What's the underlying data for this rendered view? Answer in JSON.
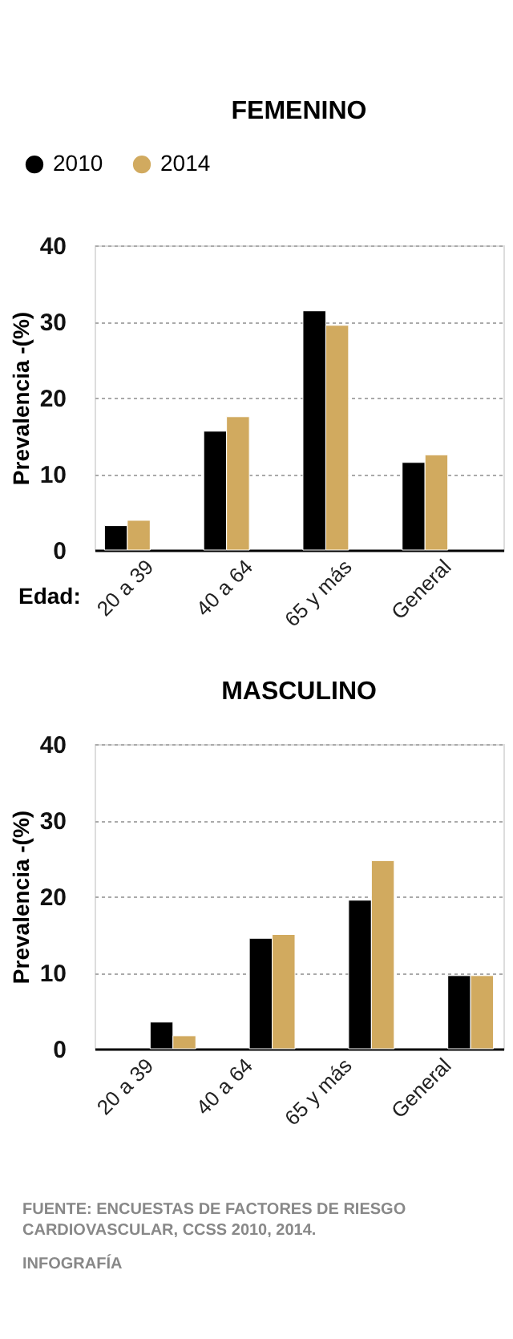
{
  "chart_data": [
    {
      "type": "bar",
      "title": "FEMENINO",
      "ylabel": "Prevalencia -(%)",
      "xlabel": "Edad:",
      "categories": [
        "20 a 39",
        "40 a 64",
        "65 y más",
        "General"
      ],
      "series": [
        {
          "name": "2010",
          "color": "#000000",
          "values": [
            3.2,
            15.6,
            31.4,
            11.5
          ]
        },
        {
          "name": "2014",
          "color": "#d1aa5f",
          "values": [
            3.9,
            17.5,
            29.5,
            12.5
          ]
        }
      ],
      "ylim": [
        0,
        40
      ],
      "yticks": [
        0,
        10,
        20,
        30,
        40
      ],
      "grid": "y",
      "legend": "top left"
    },
    {
      "type": "bar",
      "title": "MASCULINO",
      "ylabel": "Prevalencia -(%)",
      "categories": [
        "20 a 39",
        "40 a 64",
        "65 y más",
        "General"
      ],
      "series": [
        {
          "color": "#000000",
          "values": [
            3.5,
            14.5,
            19.5,
            9.6
          ]
        },
        {
          "color": "#d1aa5f",
          "values": [
            1.7,
            15.0,
            24.7,
            9.6
          ]
        }
      ],
      "ylim": [
        0,
        40
      ],
      "yticks": [
        0,
        10,
        20,
        30,
        40
      ],
      "grid": "y",
      "annotations": [
        "FUENTE: ENCUESTAS DE FACTORES DE RIESGO\nCARDIOVASCULAR, CCSS 2010, 2014.",
        "INFOGRAFÍA"
      ]
    }
  ]
}
